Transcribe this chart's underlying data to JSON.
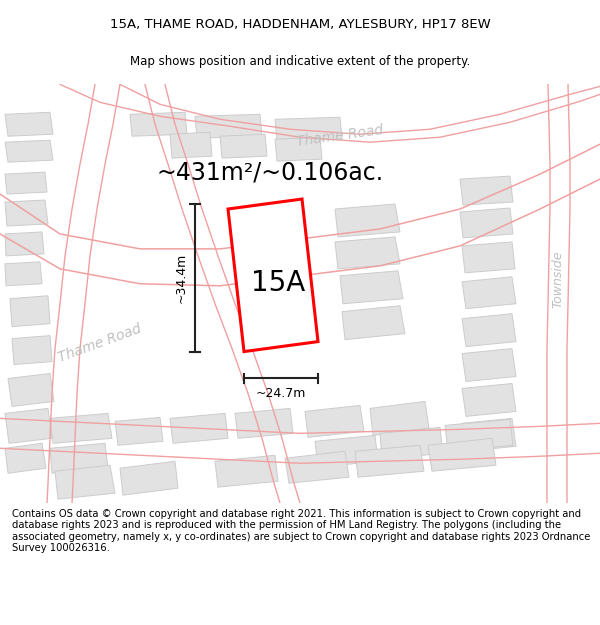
{
  "title_line1": "15A, THAME ROAD, HADDENHAM, AYLESBURY, HP17 8EW",
  "title_line2": "Map shows position and indicative extent of the property.",
  "area_text": "~431m²/~0.106ac.",
  "label_15A": "15A",
  "dim_vertical": "~34.4m",
  "dim_horizontal": "~24.7m",
  "road_label1": "Thame Road",
  "road_label2": "Thame Road",
  "road_label3": "Townside",
  "footer_text": "Contains OS data © Crown copyright and database right 2021. This information is subject to Crown copyright and database rights 2023 and is reproduced with the permission of HM Land Registry. The polygons (including the associated geometry, namely x, y co-ordinates) are subject to Crown copyright and database rights 2023 Ordnance Survey 100026316.",
  "bg_color": "#ffffff",
  "map_bg": "#f8f8f8",
  "bld_fill": "#e2e2e2",
  "bld_edge": "#cccccc",
  "road_line_color": "#f0a0a0",
  "highlight_stroke": "#ff0000",
  "highlight_fill": "#ffffff",
  "dim_line_color": "#222222",
  "road_label_color": "#c0c0c0",
  "title_fontsize": 9.5,
  "subtitle_fontsize": 8.5,
  "footer_fontsize": 7.2,
  "area_fontsize": 17,
  "label_fontsize": 20,
  "dim_fontsize": 9
}
